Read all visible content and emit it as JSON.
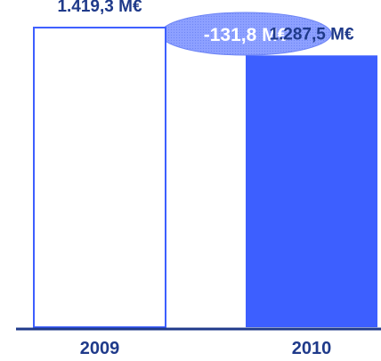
{
  "chart_data": {
    "type": "bar",
    "categories": [
      "2009",
      "2010"
    ],
    "values": [
      1419.3,
      1287.5
    ],
    "value_labels": [
      "1.419,3 M€",
      "1.287,5 M€"
    ],
    "title": "",
    "xlabel": "",
    "ylabel": "",
    "ylim": [
      0,
      1550
    ],
    "grid": false,
    "legend": "none",
    "annotation": "-131,8 M€",
    "colors": {
      "bar_2009_fill": "#ffffff",
      "bar_2009_stroke": "#3d5fff",
      "bar_2010_fill": "#3d5fff",
      "axis": "#1f3a8a",
      "label_text": "#1f3a8a",
      "bubble_fill": "#8da0ff",
      "bubble_text": "#ffffff"
    }
  }
}
